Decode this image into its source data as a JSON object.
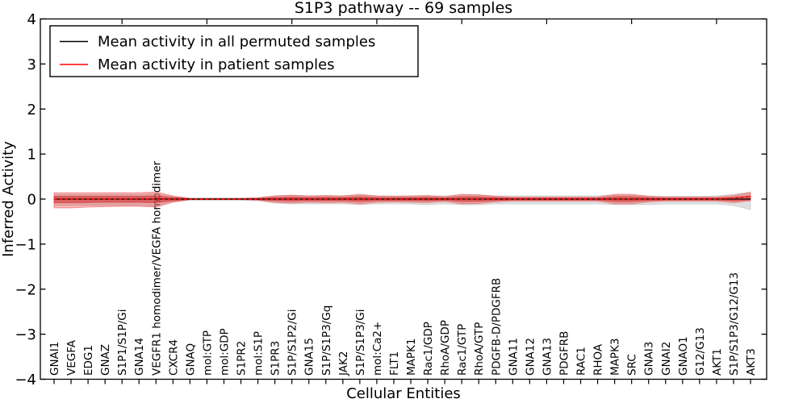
{
  "figure": {
    "background": "#ffffff"
  },
  "colors": {
    "axis": "#000000",
    "permuted_line": "#000000",
    "patient_line": "#ff0000",
    "permuted_band": "#b8b8b8",
    "patient_band_outer": "#f03030",
    "patient_band_inner": "#d02020"
  },
  "legend": {
    "entries": [
      {
        "label": "Mean activity in all permuted samples",
        "color": "#000000"
      },
      {
        "label": "Mean activity in patient samples",
        "color": "#ff0000"
      }
    ]
  },
  "chart_data": {
    "type": "area",
    "title": "S1P3 pathway -- 69 samples",
    "xlabel": "Cellular Entities",
    "ylabel": "Inferred Activity",
    "ylim": [
      -4,
      4
    ],
    "yticks": [
      -4,
      -3,
      -2,
      -1,
      0,
      1,
      2,
      3,
      4
    ],
    "grid": false,
    "legend_position": "upper left",
    "categories": [
      "GNAI1",
      "VEGFA",
      "EDG1",
      "GNAZ",
      "S1P1/S1P/Gi",
      "GNA14",
      "VEGFR1 homodimer/VEGFA homodimer",
      "CXCR4",
      "GNAQ",
      "mol:GTP",
      "mol:GDP",
      "S1PR2",
      "mol:S1P",
      "S1PR3",
      "S1P/S1P2/Gi",
      "GNA15",
      "S1P/S1P3/Gq",
      "JAK2",
      "S1P/S1P3/Gi",
      "mol:Ca2+",
      "FLT1",
      "MAPK1",
      "Rac1/GDP",
      "RhoA/GDP",
      "Rac1/GTP",
      "RhoA/GTP",
      "PDGFB-D/PDGFRB",
      "GNA11",
      "GNA12",
      "GNA13",
      "PDGFRB",
      "RAC1",
      "RHOA",
      "MAPK3",
      "SRC",
      "GNAI3",
      "GNAI2",
      "GNAO1",
      "G12/G13",
      "AKT1",
      "S1P/S1P3/G12/G13",
      "AKT3"
    ],
    "series": [
      {
        "name": "Mean activity in all permuted samples",
        "color": "#000000",
        "style": "solid",
        "values": [
          0,
          0,
          0,
          0,
          0,
          0,
          0,
          0,
          0,
          0,
          0,
          0,
          0,
          0,
          0,
          0,
          0,
          0,
          0,
          0,
          0,
          0,
          0,
          0,
          0,
          0,
          0,
          0,
          0,
          0,
          0,
          0,
          0,
          0,
          0,
          0,
          0,
          0,
          0,
          0,
          0,
          0
        ]
      },
      {
        "name": "Mean activity in patient samples",
        "color": "#ff0000",
        "style": "dashed",
        "values": [
          0,
          0,
          0,
          0,
          0,
          0,
          0,
          0,
          0,
          0,
          0,
          0,
          0,
          0,
          0,
          0,
          0,
          0,
          0,
          0,
          0,
          0,
          0,
          0,
          0,
          0,
          0,
          0,
          0,
          0,
          0,
          0,
          0,
          0,
          0,
          0,
          0,
          0,
          0,
          0,
          0.02,
          0.06
        ]
      }
    ],
    "bands": [
      {
        "name": "permuted-samples-range",
        "fill": "#b8b8b8",
        "opacity": 0.45,
        "upper": [
          0.107,
          0.107,
          0.107,
          0.107,
          0.107,
          0.107,
          0.125,
          0.054,
          0.027,
          0.027,
          0.027,
          0.027,
          0.036,
          0.071,
          0.08,
          0.071,
          0.071,
          0.071,
          0.089,
          0.071,
          0.071,
          0.071,
          0.071,
          0.071,
          0.089,
          0.089,
          0.071,
          0.071,
          0.071,
          0.071,
          0.071,
          0.071,
          0.071,
          0.089,
          0.089,
          0.071,
          0.063,
          0.063,
          0.063,
          0.071,
          0.107,
          0.161
        ],
        "lower": [
          -0.143,
          -0.143,
          -0.143,
          -0.143,
          -0.143,
          -0.143,
          -0.161,
          -0.054,
          -0.027,
          -0.027,
          -0.027,
          -0.027,
          -0.036,
          -0.089,
          -0.107,
          -0.107,
          -0.107,
          -0.107,
          -0.125,
          -0.107,
          -0.107,
          -0.107,
          -0.125,
          -0.107,
          -0.125,
          -0.125,
          -0.107,
          -0.107,
          -0.107,
          -0.107,
          -0.107,
          -0.107,
          -0.107,
          -0.125,
          -0.125,
          -0.125,
          -0.107,
          -0.107,
          -0.107,
          -0.107,
          -0.143,
          -0.232
        ]
      },
      {
        "name": "patient-samples-range-outer",
        "fill": "#f03030",
        "opacity": 0.34,
        "upper": [
          0.143,
          0.143,
          0.143,
          0.143,
          0.143,
          0.143,
          0.161,
          0.071,
          0.014,
          0.014,
          0.014,
          0.014,
          0.027,
          0.071,
          0.089,
          0.071,
          0.08,
          0.071,
          0.107,
          0.071,
          0.063,
          0.071,
          0.08,
          0.054,
          0.107,
          0.098,
          0.063,
          0.045,
          0.045,
          0.045,
          0.045,
          0.045,
          0.045,
          0.107,
          0.107,
          0.063,
          0.045,
          0.045,
          0.045,
          0.045,
          0.08,
          0.143
        ],
        "lower": [
          -0.196,
          -0.196,
          -0.179,
          -0.17,
          -0.161,
          -0.161,
          -0.179,
          -0.071,
          -0.014,
          -0.014,
          -0.014,
          -0.014,
          -0.027,
          -0.071,
          -0.089,
          -0.071,
          -0.08,
          -0.071,
          -0.107,
          -0.071,
          -0.063,
          -0.071,
          -0.08,
          -0.054,
          -0.107,
          -0.098,
          -0.063,
          -0.045,
          -0.045,
          -0.045,
          -0.045,
          -0.045,
          -0.045,
          -0.107,
          -0.107,
          -0.063,
          -0.045,
          -0.045,
          -0.045,
          -0.045,
          -0.08,
          -0.036
        ]
      },
      {
        "name": "patient-samples-range-inner",
        "fill": "#d02020",
        "opacity": 0.5,
        "upper": [
          0.063,
          0.063,
          0.063,
          0.063,
          0.063,
          0.063,
          0.071,
          0.036,
          0.009,
          0.009,
          0.009,
          0.009,
          0.014,
          0.036,
          0.045,
          0.036,
          0.039,
          0.036,
          0.054,
          0.036,
          0.032,
          0.036,
          0.039,
          0.027,
          0.054,
          0.05,
          0.032,
          0.021,
          0.021,
          0.021,
          0.021,
          0.021,
          0.021,
          0.054,
          0.054,
          0.032,
          0.021,
          0.021,
          0.021,
          0.021,
          0.039,
          0.071
        ],
        "lower": [
          -0.08,
          -0.08,
          -0.075,
          -0.071,
          -0.071,
          -0.071,
          -0.08,
          -0.036,
          -0.009,
          -0.009,
          -0.009,
          -0.009,
          -0.014,
          -0.036,
          -0.045,
          -0.036,
          -0.039,
          -0.036,
          -0.054,
          -0.036,
          -0.032,
          -0.036,
          -0.039,
          -0.027,
          -0.054,
          -0.05,
          -0.032,
          -0.021,
          -0.021,
          -0.021,
          -0.021,
          -0.021,
          -0.021,
          -0.054,
          -0.054,
          -0.032,
          -0.021,
          -0.021,
          -0.021,
          -0.021,
          -0.039,
          -0.018
        ]
      }
    ]
  }
}
